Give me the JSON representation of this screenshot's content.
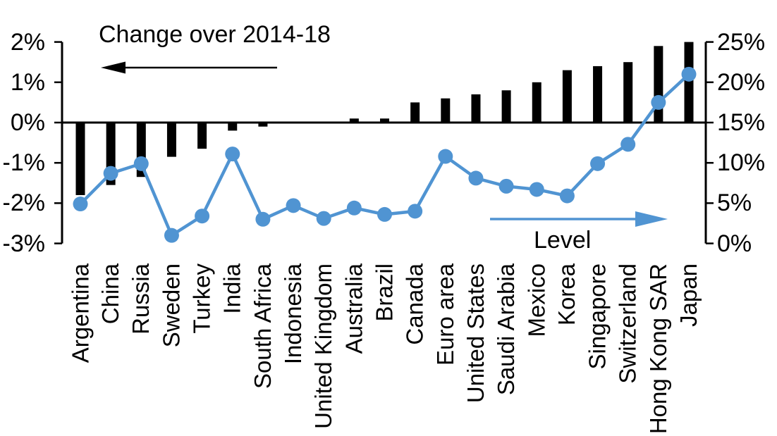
{
  "chart_data": {
    "type": "combo_bar_line",
    "title": "",
    "categories": [
      "Argentina",
      "China",
      "Russia",
      "Sweden",
      "Turkey",
      "India",
      "South Africa",
      "Indonesia",
      "United Kingdom",
      "Australia",
      "Brazil",
      "Canada",
      "Euro area",
      "United States",
      "Saudi Arabia",
      "Mexico",
      "Korea",
      "Singapore",
      "Switzerland",
      "Hong Kong SAR",
      "Japan"
    ],
    "series": [
      {
        "name": "Change over 2014-18",
        "type": "bar",
        "axis": "left",
        "unit": "%",
        "color": "#000000",
        "values": [
          -1.8,
          -1.55,
          -1.35,
          -0.85,
          -0.65,
          -0.2,
          -0.1,
          0,
          0,
          0.1,
          0.1,
          0.5,
          0.6,
          0.7,
          0.8,
          1.0,
          1.3,
          1.4,
          1.5,
          1.9,
          2.0
        ]
      },
      {
        "name": "Level",
        "type": "line",
        "axis": "right",
        "unit": "%",
        "color": "#5094D2",
        "values": [
          4.9,
          8.7,
          9.9,
          1.0,
          3.4,
          11.1,
          3.0,
          4.7,
          3.1,
          4.4,
          3.6,
          4.0,
          10.8,
          8.1,
          7.1,
          6.7,
          5.9,
          9.9,
          12.3,
          17.5,
          21.0
        ]
      }
    ],
    "left_axis": {
      "min": -3,
      "max": 2,
      "ticks": [
        {
          "label": "2%",
          "value": 2
        },
        {
          "label": "1%",
          "value": 1
        },
        {
          "label": "0%",
          "value": 0
        },
        {
          "label": "-1%",
          "value": -1
        },
        {
          "label": "-2%",
          "value": -2
        },
        {
          "label": "-3%",
          "value": -3
        }
      ]
    },
    "right_axis": {
      "min": 0,
      "max": 25,
      "ticks": [
        {
          "label": "25%",
          "value": 25
        },
        {
          "label": "20%",
          "value": 20
        },
        {
          "label": "15%",
          "value": 15
        },
        {
          "label": "10%",
          "value": 10
        },
        {
          "label": "5%",
          "value": 5
        },
        {
          "label": "0%",
          "value": 0
        }
      ]
    },
    "annotations": [
      {
        "text": "Change over 2014-18",
        "arrow": "left",
        "color": "#000000"
      },
      {
        "text": "Level",
        "arrow": "right",
        "color": "#5094D2"
      }
    ],
    "grid": false,
    "legend_position": "in-chart annotations"
  }
}
